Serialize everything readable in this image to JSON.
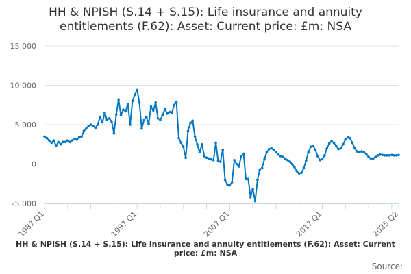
{
  "chart_data": {
    "type": "line",
    "title": "HH & NPISH (S.14 + S.15): Life insurance and annuity entitlements (F.62): Asset: Current price: £m: NSA",
    "title_lines": [
      "HH & NPISH (S.14 + S.15): Life insurance and annuity",
      "entitlements (F.62): Asset: Current price: £m: NSA"
    ],
    "xlabel": "",
    "ylabel": "",
    "x_start": "1987 Q1",
    "x_end": "2025 Q2",
    "x_tick_labels": [
      "1987 Q1",
      "1997 Q1",
      "2007 Q1",
      "2017 Q1",
      "2025 Q2"
    ],
    "x_tick_label_indices": [
      0,
      40,
      80,
      120,
      153
    ],
    "y_ticks": [
      -5000,
      0,
      5000,
      10000,
      15000
    ],
    "y_tick_labels": [
      "-5 000",
      "0",
      "5 000",
      "10 000",
      "15 000"
    ],
    "ylim": [
      -5000,
      15000
    ],
    "grid": true,
    "legend": "bottom",
    "series": [
      {
        "name": "HH & NPISH (S.14 + S.15): Life insurance and annuity entitlements (F.62): Asset: Current price: £m: NSA",
        "color": "#0075c2",
        "values": [
          3500,
          3300,
          3000,
          2700,
          3000,
          2300,
          2800,
          2500,
          2800,
          2800,
          3000,
          2800,
          3000,
          3200,
          3100,
          3400,
          3500,
          4200,
          4500,
          4800,
          5000,
          4800,
          4600,
          5000,
          6000,
          5300,
          6500,
          5600,
          5800,
          5400,
          3900,
          6300,
          8200,
          6200,
          6900,
          6700,
          7600,
          5000,
          8000,
          8800,
          9400,
          7800,
          4500,
          5600,
          6000,
          5100,
          7300,
          6800,
          7800,
          5800,
          5600,
          6200,
          7000,
          6400,
          6600,
          6500,
          7500,
          7900,
          3300,
          2700,
          2200,
          800,
          4200,
          5200,
          5500,
          3500,
          2500,
          1500,
          2500,
          1000,
          800,
          700,
          600,
          500,
          2700,
          400,
          300,
          1800,
          -2000,
          -2600,
          -2700,
          -2300,
          500,
          0,
          -300,
          1000,
          1300,
          -1900,
          -1900,
          -4200,
          -3200,
          -4700,
          -2000,
          -700,
          -500,
          600,
          1500,
          1900,
          2000,
          1800,
          1500,
          1200,
          1000,
          900,
          700,
          500,
          300,
          0,
          -400,
          -900,
          -1200,
          -1100,
          -500,
          400,
          1500,
          2200,
          2300,
          1800,
          1000,
          500,
          600,
          1100,
          2000,
          2600,
          2900,
          2700,
          2300,
          1900,
          2000,
          2500,
          3100,
          3400,
          3300,
          2700,
          2000,
          1600,
          1500,
          1600,
          1500,
          1300,
          900,
          700,
          700,
          900,
          1100,
          1200,
          1150,
          1100,
          1100,
          1100,
          1150,
          1100,
          1100,
          1150
        ]
      }
    ]
  },
  "footer": {
    "legend_label": "HH & NPISH (S.14 + S.15): Life insurance and annuity entitlements (F.62): Asset: Current price: £m: NSA",
    "source_label": "Source:"
  }
}
